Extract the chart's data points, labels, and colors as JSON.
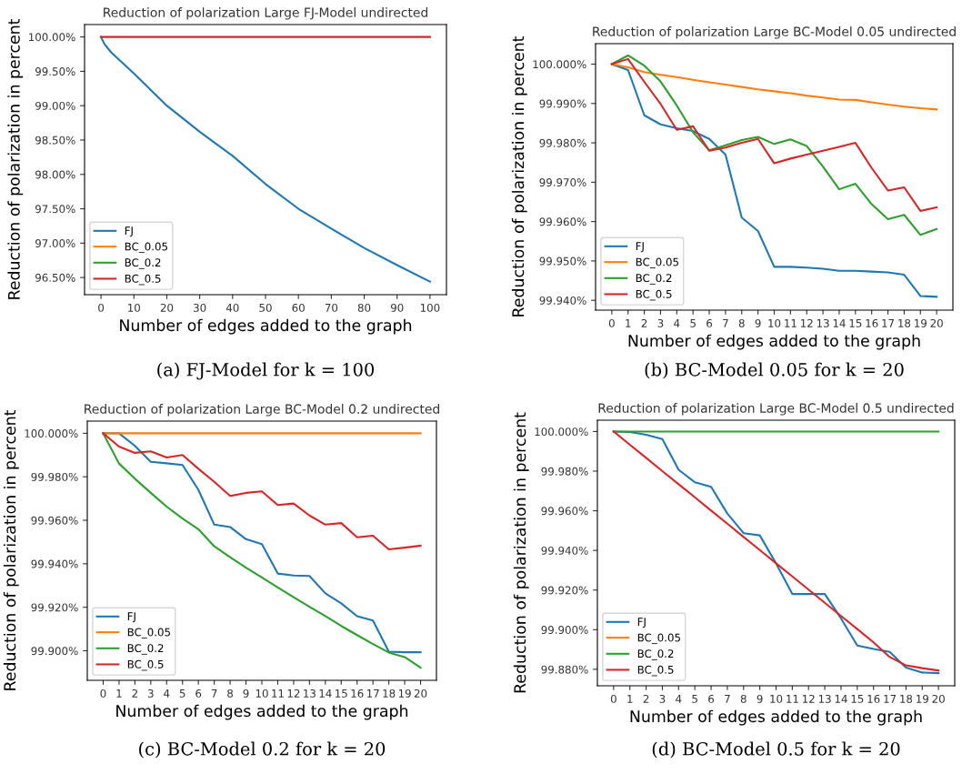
{
  "chart_data": [
    {
      "type": "line",
      "title": "Reduction of polarization Large FJ-Model undirected",
      "xlabel": "Number of edges added to the graph",
      "ylabel": "Reduction of polarization in percent",
      "annotations": [
        "(a) FJ-Model for k = 100"
      ],
      "xlim": [
        -5,
        105
      ],
      "xticks": [
        0,
        10,
        20,
        30,
        40,
        50,
        60,
        70,
        80,
        90,
        100
      ],
      "ylim": [
        96.25,
        100.18
      ],
      "yticks": [
        {
          "value": 96.5,
          "label": "96.50%"
        },
        {
          "value": 97.0,
          "label": "97.00%"
        },
        {
          "value": 97.5,
          "label": "97.50%"
        },
        {
          "value": 98.0,
          "label": "98.00%"
        },
        {
          "value": 98.5,
          "label": "98.50%"
        },
        {
          "value": 99.0,
          "label": "99.00%"
        },
        {
          "value": 99.5,
          "label": "99.50%"
        },
        {
          "value": 100.0,
          "label": "100.00%"
        }
      ],
      "grid": false,
      "legend": "bottom left",
      "series": [
        {
          "name": "FJ",
          "color": "#1f77b4",
          "x": [
            0,
            1,
            3,
            5,
            10,
            20,
            30,
            40,
            50,
            60,
            70,
            80,
            90,
            100
          ],
          "values": [
            100,
            99.9,
            99.78,
            99.69,
            99.47,
            99.0,
            98.62,
            98.27,
            97.86,
            97.5,
            97.21,
            96.93,
            96.68,
            96.44
          ]
        },
        {
          "name": "BC_0.05",
          "color": "#ff7f0e"
        },
        {
          "name": "BC_0.2",
          "color": "#2ca02c"
        },
        {
          "name": "BC_0.5",
          "color": "#d62728",
          "x": [
            0,
            100
          ],
          "values": [
            100,
            100
          ]
        }
      ]
    },
    {
      "type": "line",
      "title": "Reduction of polarization Large BC-Model 0.05 undirected",
      "xlabel": "Number of edges added to the graph",
      "ylabel": "Reduction of polarization in percent",
      "annotations": [
        "(b) BC-Model 0.05 for k = 20"
      ],
      "x": [
        0,
        1,
        2,
        3,
        4,
        5,
        6,
        7,
        8,
        9,
        10,
        11,
        12,
        13,
        14,
        15,
        16,
        17,
        18,
        19,
        20
      ],
      "xlim": [
        -1,
        21
      ],
      "xticks": [
        0,
        1,
        2,
        3,
        4,
        5,
        6,
        7,
        8,
        9,
        10,
        11,
        12,
        13,
        14,
        15,
        16,
        17,
        18,
        19,
        20
      ],
      "ylim": [
        99.9375,
        100.0052
      ],
      "yticks": [
        {
          "value": 99.94,
          "label": "99.940%"
        },
        {
          "value": 99.95,
          "label": "99.950%"
        },
        {
          "value": 99.96,
          "label": "99.960%"
        },
        {
          "value": 99.97,
          "label": "99.970%"
        },
        {
          "value": 99.98,
          "label": "99.980%"
        },
        {
          "value": 99.99,
          "label": "99.990%"
        },
        {
          "value": 100.0,
          "label": "100.000%"
        }
      ],
      "grid": false,
      "legend": "bottom left",
      "series": [
        {
          "name": "FJ",
          "color": "#1f77b4",
          "values": [
            100,
            99.9985,
            99.987,
            99.9847,
            99.9837,
            99.983,
            99.981,
            99.977,
            99.961,
            99.9576,
            99.9485,
            99.9485,
            99.9483,
            99.948,
            99.9475,
            99.9475,
            99.9473,
            99.9471,
            99.9465,
            99.9411,
            99.9409
          ]
        },
        {
          "name": "BC_0.05",
          "color": "#ff7f0e",
          "values": [
            100,
            99.9992,
            99.998,
            99.9973,
            99.9967,
            99.996,
            99.9954,
            99.9948,
            99.9942,
            99.9936,
            99.9931,
            99.9926,
            99.992,
            99.9915,
            99.991,
            99.9909,
            99.9903,
            99.9897,
            99.9892,
            99.9888,
            99.9885
          ]
        },
        {
          "name": "BC_0.2",
          "color": "#2ca02c",
          "values": [
            100,
            100.0022,
            99.9996,
            99.9956,
            99.9895,
            99.9827,
            99.9781,
            99.9794,
            99.9807,
            99.9815,
            99.9797,
            99.9809,
            99.9792,
            99.974,
            99.9682,
            99.9696,
            99.9644,
            99.9606,
            99.9617,
            99.9566,
            99.9581
          ]
        },
        {
          "name": "BC_0.5",
          "color": "#d62728",
          "values": [
            100,
            100.0013,
            99.9955,
            99.9899,
            99.9833,
            99.9842,
            99.978,
            99.9788,
            99.98,
            99.981,
            99.9748,
            99.976,
            99.977,
            99.978,
            99.979,
            99.98,
            99.9736,
            99.9679,
            99.9687,
            99.9627,
            99.9636
          ]
        }
      ]
    },
    {
      "type": "line",
      "title": "Reduction of polarization Large BC-Model 0.2 undirected",
      "xlabel": "Number of edges added to the graph",
      "ylabel": "Reduction of polarization in percent",
      "annotations": [
        "(c) BC-Model 0.2 for k = 20"
      ],
      "x": [
        0,
        1,
        2,
        3,
        4,
        5,
        6,
        7,
        8,
        9,
        10,
        11,
        12,
        13,
        14,
        15,
        16,
        17,
        18,
        19,
        20
      ],
      "xlim": [
        -1,
        21
      ],
      "xticks": [
        0,
        1,
        2,
        3,
        4,
        5,
        6,
        7,
        8,
        9,
        10,
        11,
        12,
        13,
        14,
        15,
        16,
        17,
        18,
        19,
        20
      ],
      "ylim": [
        99.8864,
        100.0056
      ],
      "yticks": [
        {
          "value": 99.9,
          "label": "99.900%"
        },
        {
          "value": 99.92,
          "label": "99.920%"
        },
        {
          "value": 99.94,
          "label": "99.940%"
        },
        {
          "value": 99.96,
          "label": "99.960%"
        },
        {
          "value": 99.98,
          "label": "99.980%"
        },
        {
          "value": 100.0,
          "label": "100.000%"
        }
      ],
      "grid": false,
      "legend": "bottom left",
      "series": [
        {
          "name": "FJ",
          "color": "#1f77b4",
          "values": [
            100,
            100,
            99.9942,
            99.9869,
            99.9862,
            99.9854,
            99.974,
            99.958,
            99.9569,
            99.9513,
            99.949,
            99.9355,
            99.9346,
            99.9344,
            99.9264,
            99.9218,
            99.9159,
            99.9139,
            99.8996,
            99.8993,
            99.8993
          ]
        },
        {
          "name": "BC_0.05",
          "color": "#ff7f0e",
          "values": [
            100,
            100,
            100,
            100,
            100,
            100,
            100,
            100,
            100,
            100,
            100,
            100,
            100,
            100,
            100,
            100,
            100,
            100,
            100,
            100,
            100
          ]
        },
        {
          "name": "BC_0.2",
          "color": "#2ca02c",
          "values": [
            100,
            99.9861,
            99.9791,
            99.9726,
            99.9663,
            99.9608,
            99.9559,
            99.948,
            99.943,
            99.9382,
            99.9337,
            99.9291,
            99.9246,
            99.9202,
            99.9159,
            99.9114,
            99.9072,
            99.9031,
            99.8992,
            99.8971,
            99.8922
          ]
        },
        {
          "name": "BC_0.5",
          "color": "#d62728",
          "values": [
            100,
            99.9939,
            99.991,
            99.9917,
            99.9889,
            99.99,
            99.9837,
            99.9777,
            99.9712,
            99.9726,
            99.9733,
            99.967,
            99.9677,
            99.9622,
            99.958,
            99.9587,
            99.9522,
            99.9529,
            99.9466,
            99.9474,
            99.9483
          ]
        }
      ]
    },
    {
      "type": "line",
      "title": "Reduction of polarization Large BC-Model 0.5 undirected",
      "xlabel": "Number of edges added to the graph",
      "ylabel": "Reduction of polarization in percent",
      "annotations": [
        "(d) BC-Model 0.5 for k = 20"
      ],
      "x": [
        0,
        1,
        2,
        3,
        4,
        5,
        6,
        7,
        8,
        9,
        10,
        11,
        12,
        13,
        14,
        15,
        16,
        17,
        18,
        19,
        20
      ],
      "xlim": [
        -1,
        21
      ],
      "xticks": [
        0,
        1,
        2,
        3,
        4,
        5,
        6,
        7,
        8,
        9,
        10,
        11,
        12,
        13,
        14,
        15,
        16,
        17,
        18,
        19,
        20
      ],
      "ylim": [
        99.8717,
        100.0057
      ],
      "yticks": [
        {
          "value": 99.88,
          "label": "99.880%"
        },
        {
          "value": 99.9,
          "label": "99.900%"
        },
        {
          "value": 99.92,
          "label": "99.920%"
        },
        {
          "value": 99.94,
          "label": "99.940%"
        },
        {
          "value": 99.96,
          "label": "99.960%"
        },
        {
          "value": 99.98,
          "label": "99.980%"
        },
        {
          "value": 100.0,
          "label": "100.000%"
        }
      ],
      "grid": false,
      "legend": "bottom left",
      "series": [
        {
          "name": "FJ",
          "color": "#1f77b4",
          "values": [
            100,
            99.9997,
            99.9984,
            99.9962,
            99.9807,
            99.9744,
            99.9721,
            99.9586,
            99.9487,
            99.9476,
            99.9334,
            99.918,
            99.918,
            99.918,
            99.9057,
            99.892,
            99.8903,
            99.8888,
            99.8809,
            99.8784,
            99.8781
          ]
        },
        {
          "name": "BC_0.05",
          "color": "#ff7f0e",
          "values": [
            null,
            null,
            null,
            null,
            null,
            null,
            null,
            null,
            null,
            null,
            null,
            null,
            null,
            null,
            null,
            null,
            null,
            null,
            null,
            null,
            null
          ]
        },
        {
          "name": "BC_0.2",
          "color": "#2ca02c",
          "values": [
            100,
            100,
            100,
            100,
            100,
            100,
            100,
            100,
            100,
            100,
            100,
            100,
            100,
            100,
            100,
            100,
            100,
            100,
            100,
            100,
            100
          ]
        },
        {
          "name": "BC_0.5",
          "color": "#d62728",
          "values": [
            100,
            99.9933,
            99.9867,
            99.98,
            99.9734,
            99.9668,
            99.9601,
            99.9535,
            99.9468,
            99.9402,
            99.9335,
            99.9269,
            99.9202,
            99.9136,
            99.9069,
            99.9003,
            99.8936,
            99.8862,
            99.882,
            99.8806,
            99.8794
          ]
        }
      ]
    }
  ]
}
